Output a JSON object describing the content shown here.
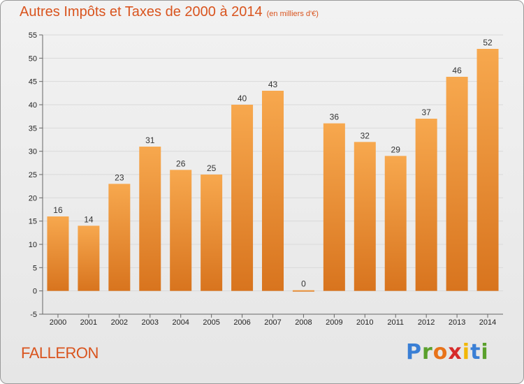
{
  "title": {
    "main": "Autres Impôts et Taxes de 2000 à 2014",
    "unit": "(en milliers d'€)"
  },
  "commune": "FALLERON",
  "logo": {
    "text": "Proxiti",
    "letters": [
      "P",
      "r",
      "o",
      "x",
      "i",
      "t",
      "i"
    ],
    "colors": [
      "#3a7fd5",
      "#5aa02c",
      "#e8731a",
      "#d62b2b",
      "#f2b705",
      "#3a7fd5",
      "#5aa02c"
    ]
  },
  "colors": {
    "bar_top": "#f7a84e",
    "bar_bottom": "#d8741e",
    "title": "#d9541e"
  },
  "chart_data": {
    "type": "bar",
    "title": "Autres Impôts et Taxes de 2000 à 2014",
    "subtitle": "(en milliers d'€)",
    "xlabel": "",
    "ylabel": "",
    "categories": [
      "2000",
      "2001",
      "2002",
      "2003",
      "2004",
      "2005",
      "2006",
      "2007",
      "2008",
      "2009",
      "2010",
      "2011",
      "2012",
      "2013",
      "2014"
    ],
    "values": [
      16,
      14,
      23,
      31,
      26,
      25,
      40,
      43,
      0,
      36,
      32,
      29,
      37,
      46,
      52
    ],
    "value_labels": [
      "16",
      "14",
      "23",
      "31",
      "26",
      "25",
      "40",
      "43",
      "0",
      "36",
      "32",
      "29",
      "37",
      "46",
      "52"
    ],
    "ylim": [
      -5,
      55
    ],
    "yticks": [
      -5,
      0,
      5,
      10,
      15,
      20,
      25,
      30,
      35,
      40,
      45,
      50,
      55
    ],
    "ytick_labels": [
      "-5",
      "0",
      "5",
      "10",
      "15",
      "20",
      "25",
      "30",
      "35",
      "40",
      "45",
      "50",
      "55"
    ],
    "grid": true,
    "legend": "none"
  }
}
